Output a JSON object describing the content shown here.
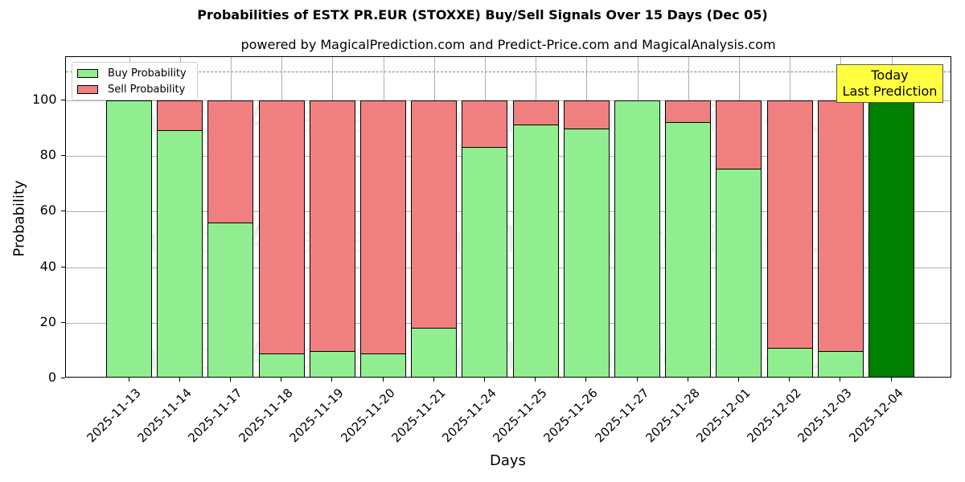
{
  "header": {
    "title": "Probabilities of ESTX PR.EUR (STOXXE) Buy/Sell Signals Over 15 Days (Dec 05)",
    "subtitle": "powered by MagicalPrediction.com and Predict-Price.com and MagicalAnalysis.com"
  },
  "legend": {
    "buy": "Buy Probability",
    "sell": "Sell Probability"
  },
  "annotation": {
    "line1": "Today",
    "line2": "Last Prediction"
  },
  "watermarks": [
    "MagicalAnalysis.com",
    "MagicalPrediction.com"
  ],
  "colors": {
    "buy": "#90ee90",
    "sell": "#f08080",
    "today": "#008000",
    "annotation_bg": "#ffff40"
  },
  "axes": {
    "xlabel": "Days",
    "ylabel": "Probability",
    "yticks": [
      "0",
      "20",
      "40",
      "60",
      "80",
      "100"
    ]
  },
  "chart_data": {
    "type": "bar",
    "stacked": true,
    "title": "Probabilities of ESTX PR.EUR (STOXXE) Buy/Sell Signals Over 15 Days (Dec 05)",
    "subtitle": "powered by MagicalPrediction.com and Predict-Price.com and MagicalAnalysis.com",
    "xlabel": "Days",
    "ylabel": "Probability",
    "ylim": [
      0,
      115.6
    ],
    "grid": true,
    "legend_position": "upper left",
    "reference_line": {
      "y": 110,
      "style": "dashed",
      "color": "#808080"
    },
    "categories": [
      "2025-11-13",
      "2025-11-14",
      "2025-11-17",
      "2025-11-18",
      "2025-11-19",
      "2025-11-20",
      "2025-11-21",
      "2025-11-24",
      "2025-11-25",
      "2025-11-26",
      "2025-11-27",
      "2025-11-28",
      "2025-12-01",
      "2025-12-02",
      "2025-12-03",
      "2025-12-04"
    ],
    "series": [
      {
        "name": "Buy Probability",
        "values": [
          100,
          89.3,
          56.1,
          9.0,
          9.8,
          9.0,
          18.2,
          83.1,
          91.2,
          90.0,
          100,
          92.3,
          75.3,
          11.1,
          9.8,
          100
        ]
      },
      {
        "name": "Sell Probability",
        "values": [
          0,
          10.7,
          43.9,
          91.0,
          90.2,
          91.0,
          81.8,
          16.9,
          8.8,
          10.0,
          0,
          7.7,
          24.7,
          88.9,
          90.2,
          0
        ]
      }
    ],
    "annotations": [
      {
        "text": "Today\nLast Prediction",
        "category": "2025-12-04"
      }
    ],
    "highlight": {
      "category": "2025-12-04",
      "color": "#008000"
    }
  }
}
